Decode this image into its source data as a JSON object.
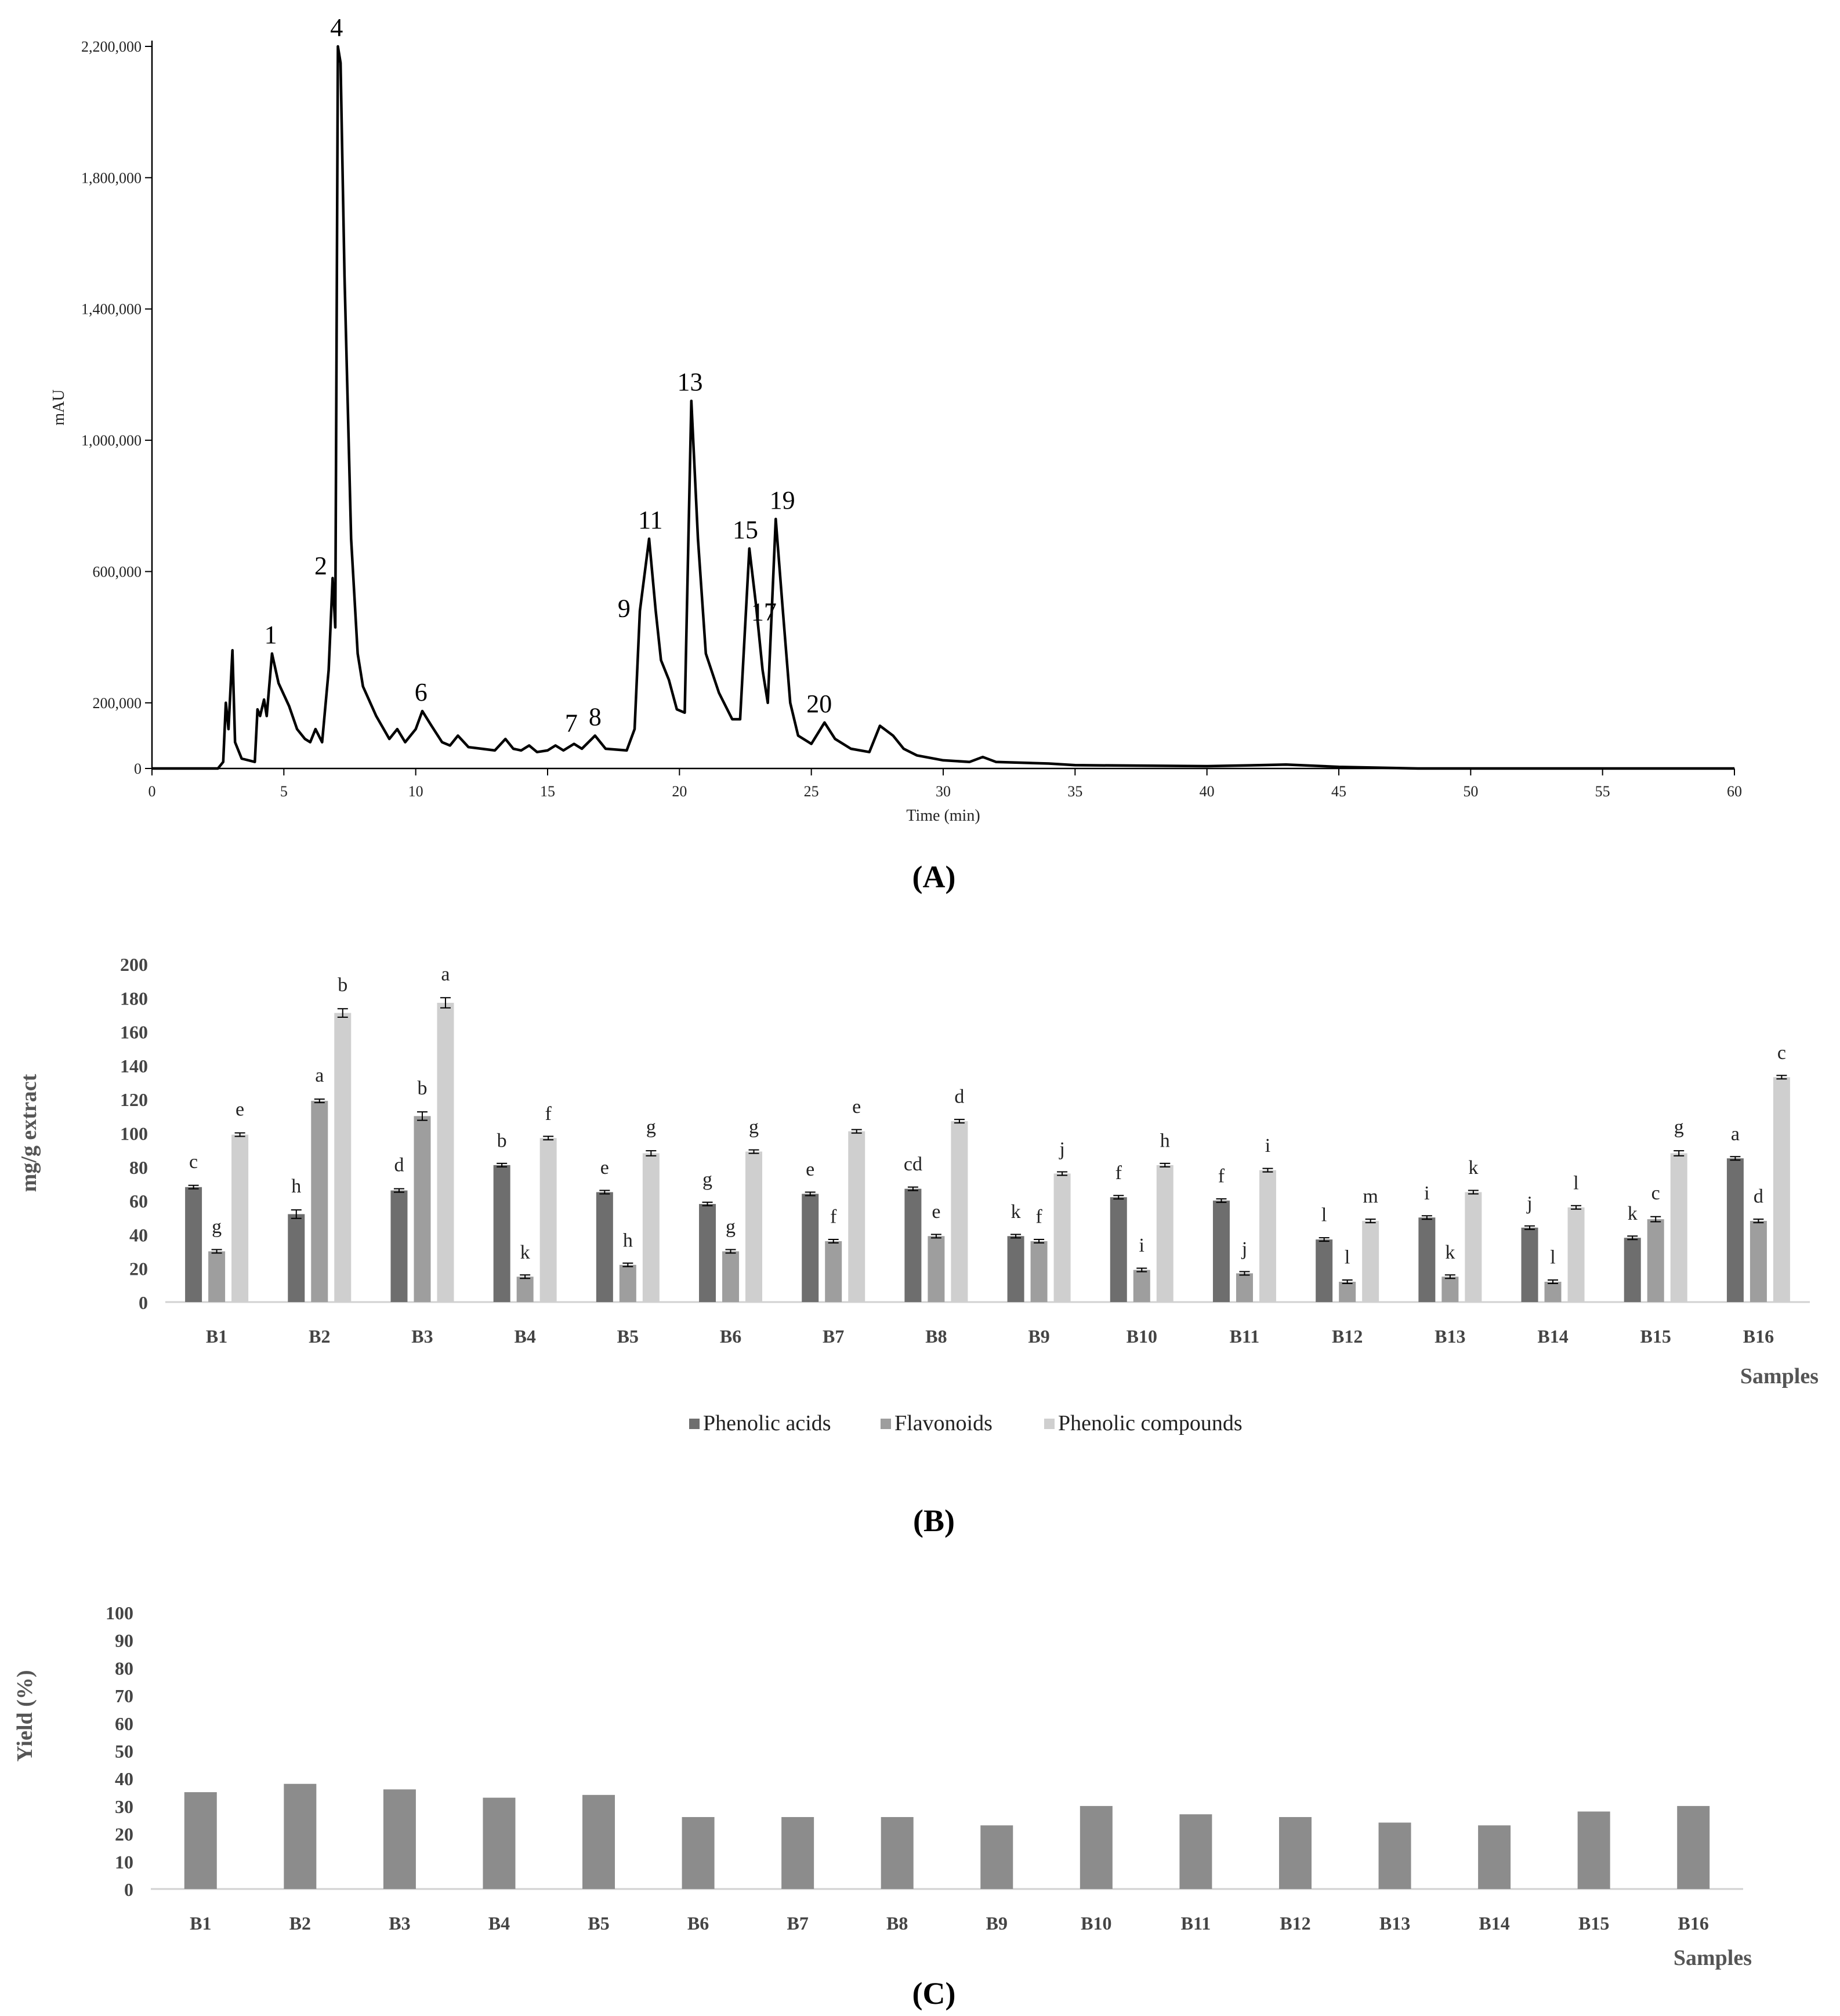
{
  "chart_data": [
    {
      "type": "line",
      "panel_label": "(A)",
      "xlabel": "Time (min)",
      "ylabel": "mAU",
      "xlim": [
        0,
        60
      ],
      "ylim": [
        0,
        2200000
      ],
      "x_ticks": [
        0,
        5,
        10,
        15,
        20,
        25,
        30,
        35,
        40,
        45,
        50,
        55,
        60
      ],
      "y_ticks": [
        0,
        200000,
        600000,
        1000000,
        1400000,
        1800000,
        2200000
      ],
      "y_tick_labels": [
        "0",
        "200,000",
        "600,000",
        "1,000,000",
        "1,400,000",
        "1,800,000",
        "2,200,000"
      ],
      "trace": [
        [
          0,
          0
        ],
        [
          2.5,
          0
        ],
        [
          2.7,
          20000
        ],
        [
          2.8,
          200000
        ],
        [
          2.9,
          120000
        ],
        [
          3.05,
          360000
        ],
        [
          3.15,
          80000
        ],
        [
          3.4,
          30000
        ],
        [
          3.9,
          20000
        ],
        [
          4.0,
          180000
        ],
        [
          4.1,
          160000
        ],
        [
          4.25,
          210000
        ],
        [
          4.35,
          160000
        ],
        [
          4.55,
          350000
        ],
        [
          4.8,
          260000
        ],
        [
          5.2,
          190000
        ],
        [
          5.5,
          120000
        ],
        [
          5.8,
          90000
        ],
        [
          6.0,
          80000
        ],
        [
          6.2,
          120000
        ],
        [
          6.45,
          80000
        ],
        [
          6.7,
          300000
        ],
        [
          6.85,
          580000
        ],
        [
          6.95,
          430000
        ],
        [
          7.05,
          2200000
        ],
        [
          7.15,
          2150000
        ],
        [
          7.3,
          1500000
        ],
        [
          7.55,
          700000
        ],
        [
          7.8,
          350000
        ],
        [
          8.0,
          250000
        ],
        [
          8.5,
          160000
        ],
        [
          9.0,
          90000
        ],
        [
          9.3,
          120000
        ],
        [
          9.6,
          80000
        ],
        [
          10.0,
          120000
        ],
        [
          10.25,
          175000
        ],
        [
          10.6,
          130000
        ],
        [
          11.0,
          80000
        ],
        [
          11.3,
          70000
        ],
        [
          11.6,
          100000
        ],
        [
          12.0,
          65000
        ],
        [
          12.5,
          60000
        ],
        [
          13.0,
          55000
        ],
        [
          13.4,
          90000
        ],
        [
          13.7,
          60000
        ],
        [
          14.0,
          55000
        ],
        [
          14.3,
          70000
        ],
        [
          14.6,
          50000
        ],
        [
          15.0,
          55000
        ],
        [
          15.3,
          70000
        ],
        [
          15.6,
          55000
        ],
        [
          16.0,
          75000
        ],
        [
          16.3,
          60000
        ],
        [
          16.8,
          100000
        ],
        [
          17.2,
          60000
        ],
        [
          18.0,
          55000
        ],
        [
          18.3,
          120000
        ],
        [
          18.5,
          480000
        ],
        [
          18.85,
          700000
        ],
        [
          19.1,
          480000
        ],
        [
          19.3,
          330000
        ],
        [
          19.6,
          270000
        ],
        [
          19.9,
          180000
        ],
        [
          20.2,
          170000
        ],
        [
          20.45,
          1120000
        ],
        [
          20.7,
          700000
        ],
        [
          21.0,
          350000
        ],
        [
          21.5,
          230000
        ],
        [
          22.0,
          150000
        ],
        [
          22.3,
          150000
        ],
        [
          22.65,
          670000
        ],
        [
          22.9,
          500000
        ],
        [
          23.15,
          300000
        ],
        [
          23.35,
          200000
        ],
        [
          23.65,
          760000
        ],
        [
          23.9,
          500000
        ],
        [
          24.2,
          200000
        ],
        [
          24.5,
          100000
        ],
        [
          25.0,
          75000
        ],
        [
          25.5,
          140000
        ],
        [
          25.9,
          90000
        ],
        [
          26.5,
          60000
        ],
        [
          27.2,
          50000
        ],
        [
          27.6,
          130000
        ],
        [
          28.1,
          100000
        ],
        [
          28.5,
          60000
        ],
        [
          29.0,
          40000
        ],
        [
          30.0,
          25000
        ],
        [
          31.0,
          20000
        ],
        [
          31.5,
          35000
        ],
        [
          32.0,
          20000
        ],
        [
          34.0,
          15000
        ],
        [
          35.0,
          10000
        ],
        [
          40.0,
          7000
        ],
        [
          42.0,
          10000
        ],
        [
          43.0,
          12000
        ],
        [
          45.0,
          5000
        ],
        [
          48.0,
          0
        ],
        [
          60.0,
          0
        ]
      ],
      "peaks": [
        {
          "label": "1",
          "time": 4.5,
          "value": 350000
        },
        {
          "label": "2",
          "time": 6.4,
          "value": 560000
        },
        {
          "label": "4",
          "time": 7.0,
          "value": 2200000
        },
        {
          "label": "6",
          "time": 10.2,
          "value": 175000
        },
        {
          "label": "7",
          "time": 15.9,
          "value": 80000
        },
        {
          "label": "8",
          "time": 16.8,
          "value": 100000
        },
        {
          "label": "9",
          "time": 17.9,
          "value": 430000
        },
        {
          "label": "11",
          "time": 18.9,
          "value": 700000
        },
        {
          "label": "13",
          "time": 20.4,
          "value": 1120000
        },
        {
          "label": "15",
          "time": 22.5,
          "value": 670000
        },
        {
          "label": "17",
          "time": 23.2,
          "value": 420000
        },
        {
          "label": "19",
          "time": 23.9,
          "value": 760000
        },
        {
          "label": "20",
          "time": 25.3,
          "value": 140000
        }
      ]
    },
    {
      "type": "bar",
      "panel_label": "(B)",
      "xlabel": "Samples",
      "ylabel": "mg/g extract",
      "ylim": [
        0,
        200
      ],
      "y_ticks": [
        0,
        20,
        40,
        60,
        80,
        100,
        120,
        140,
        160,
        180,
        200
      ],
      "categories": [
        "B1",
        "B2",
        "B3",
        "B4",
        "B5",
        "B6",
        "B7",
        "B8",
        "B9",
        "B10",
        "B11",
        "B12",
        "B13",
        "B14",
        "B15",
        "B16"
      ],
      "legend_position": "bottom",
      "series": [
        {
          "name": "Phenolic acids",
          "color": "#6e6e6e",
          "values": [
            68,
            52,
            66,
            81,
            65,
            58,
            64,
            67,
            39,
            62,
            60,
            37,
            50,
            44,
            38,
            85
          ],
          "errors": [
            1,
            2.5,
            1,
            0.5,
            0.5,
            0.5,
            0.5,
            0.5,
            0.5,
            0.5,
            0.5,
            0.5,
            0.5,
            0.5,
            0.5,
            0.5
          ],
          "letters": [
            "c",
            "h",
            "d",
            "b",
            "e",
            "g",
            "e",
            "cd",
            "k",
            "f",
            "f",
            "l",
            "i",
            "j",
            "k",
            "a"
          ]
        },
        {
          "name": "Flavonoids",
          "color": "#9e9e9e",
          "values": [
            30,
            119,
            110,
            15,
            22,
            30,
            36,
            39,
            36,
            19,
            17,
            12,
            15,
            12,
            49,
            48
          ],
          "errors": [
            0.5,
            1,
            2.5,
            0.5,
            0.5,
            0.5,
            0.5,
            0.5,
            0.5,
            0.5,
            0.5,
            0.5,
            0.5,
            0.5,
            1.5,
            0.5
          ],
          "letters": [
            "g",
            "a",
            "b",
            "k",
            "h",
            "g",
            "f",
            "e",
            "f",
            "i",
            "j",
            "l",
            "k",
            "l",
            "c",
            "d"
          ]
        },
        {
          "name": "Phenolic compounds",
          "color": "#cfcfcf",
          "values": [
            99,
            171,
            177,
            97,
            88,
            89,
            101,
            107,
            76,
            81,
            78,
            48,
            65,
            56,
            88,
            133
          ],
          "errors": [
            1,
            2.5,
            3,
            0.5,
            1.5,
            0.5,
            0.5,
            0.5,
            0.5,
            0.5,
            0.5,
            0.5,
            0.5,
            0.5,
            1.5,
            0.5
          ],
          "letters": [
            "e",
            "b",
            "a",
            "f",
            "g",
            "g",
            "e",
            "d",
            "j",
            "h",
            "i",
            "m",
            "k",
            "l",
            "g",
            "c"
          ]
        }
      ]
    },
    {
      "type": "bar",
      "panel_label": "(C)",
      "xlabel": "Samples",
      "ylabel": "Yield (%)",
      "ylim": [
        0,
        100
      ],
      "y_ticks": [
        0,
        10,
        20,
        30,
        40,
        50,
        60,
        70,
        80,
        90,
        100
      ],
      "categories": [
        "B1",
        "B2",
        "B3",
        "B4",
        "B5",
        "B6",
        "B7",
        "B8",
        "B9",
        "B10",
        "B11",
        "B12",
        "B13",
        "B14",
        "B15",
        "B16"
      ],
      "color": "#8c8c8c",
      "values": [
        35,
        38,
        36,
        33,
        34,
        26,
        26,
        26,
        23,
        30,
        27,
        26,
        24,
        23,
        28,
        30
      ]
    }
  ]
}
